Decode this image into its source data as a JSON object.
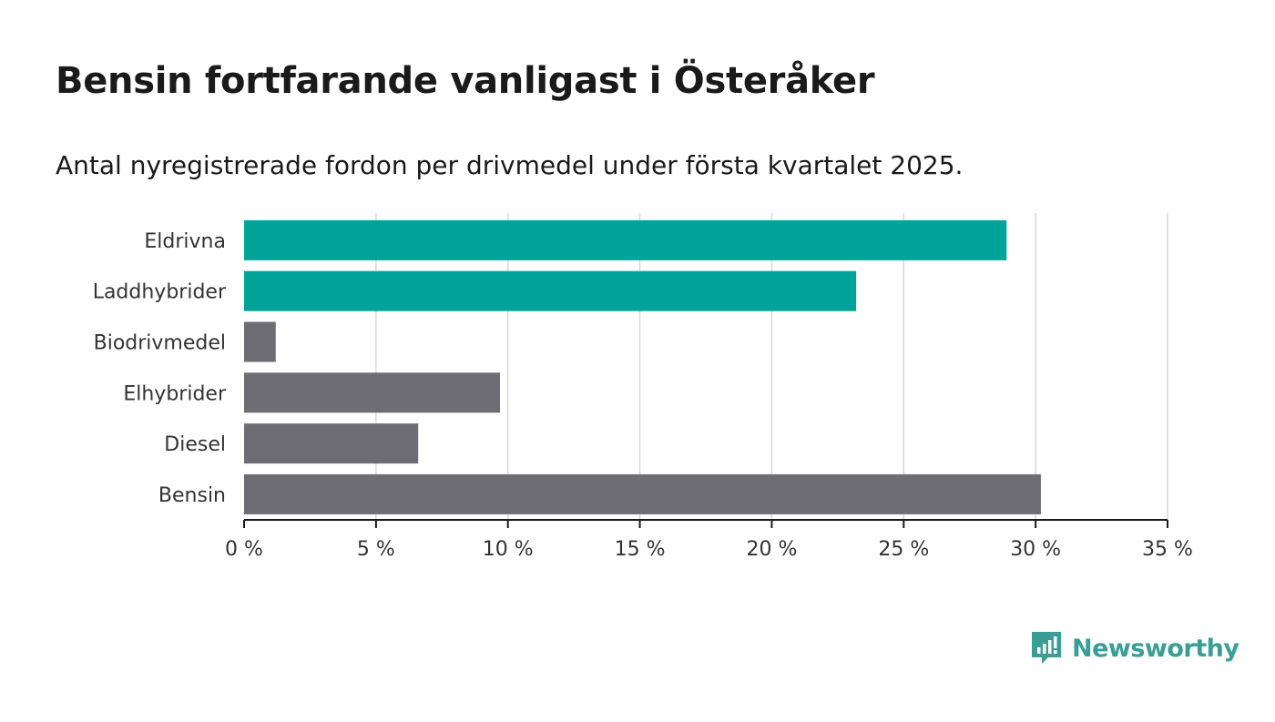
{
  "title": "Bensin fortfarande vanligast i Österåker",
  "subtitle": "Antal nyregistrerade fordon per drivmedel under första kvartalet 2025.",
  "brand": {
    "name": "Newsworthy",
    "icon": "newsworthy-logo-icon",
    "color": "#3a9e96"
  },
  "colors": {
    "highlight": "#00a39a",
    "default": "#6e6d74",
    "grid": "#d9d9d9",
    "axis": "#1a1a1a"
  },
  "chart_data": {
    "type": "bar",
    "orientation": "horizontal",
    "categories": [
      "Eldrivna",
      "Laddhybrider",
      "Biodrivmedel",
      "Elhybrider",
      "Diesel",
      "Bensin"
    ],
    "values": [
      28.9,
      23.2,
      1.2,
      9.7,
      6.6,
      30.2
    ],
    "highlighted": [
      true,
      true,
      false,
      false,
      false,
      false
    ],
    "xlim": [
      0,
      35
    ],
    "xticks": [
      0,
      5,
      10,
      15,
      20,
      25,
      30,
      35
    ],
    "xtick_labels": [
      "0 %",
      "5 %",
      "10 %",
      "15 %",
      "20 %",
      "25 %",
      "30 %",
      "35 %"
    ],
    "grid": true
  }
}
